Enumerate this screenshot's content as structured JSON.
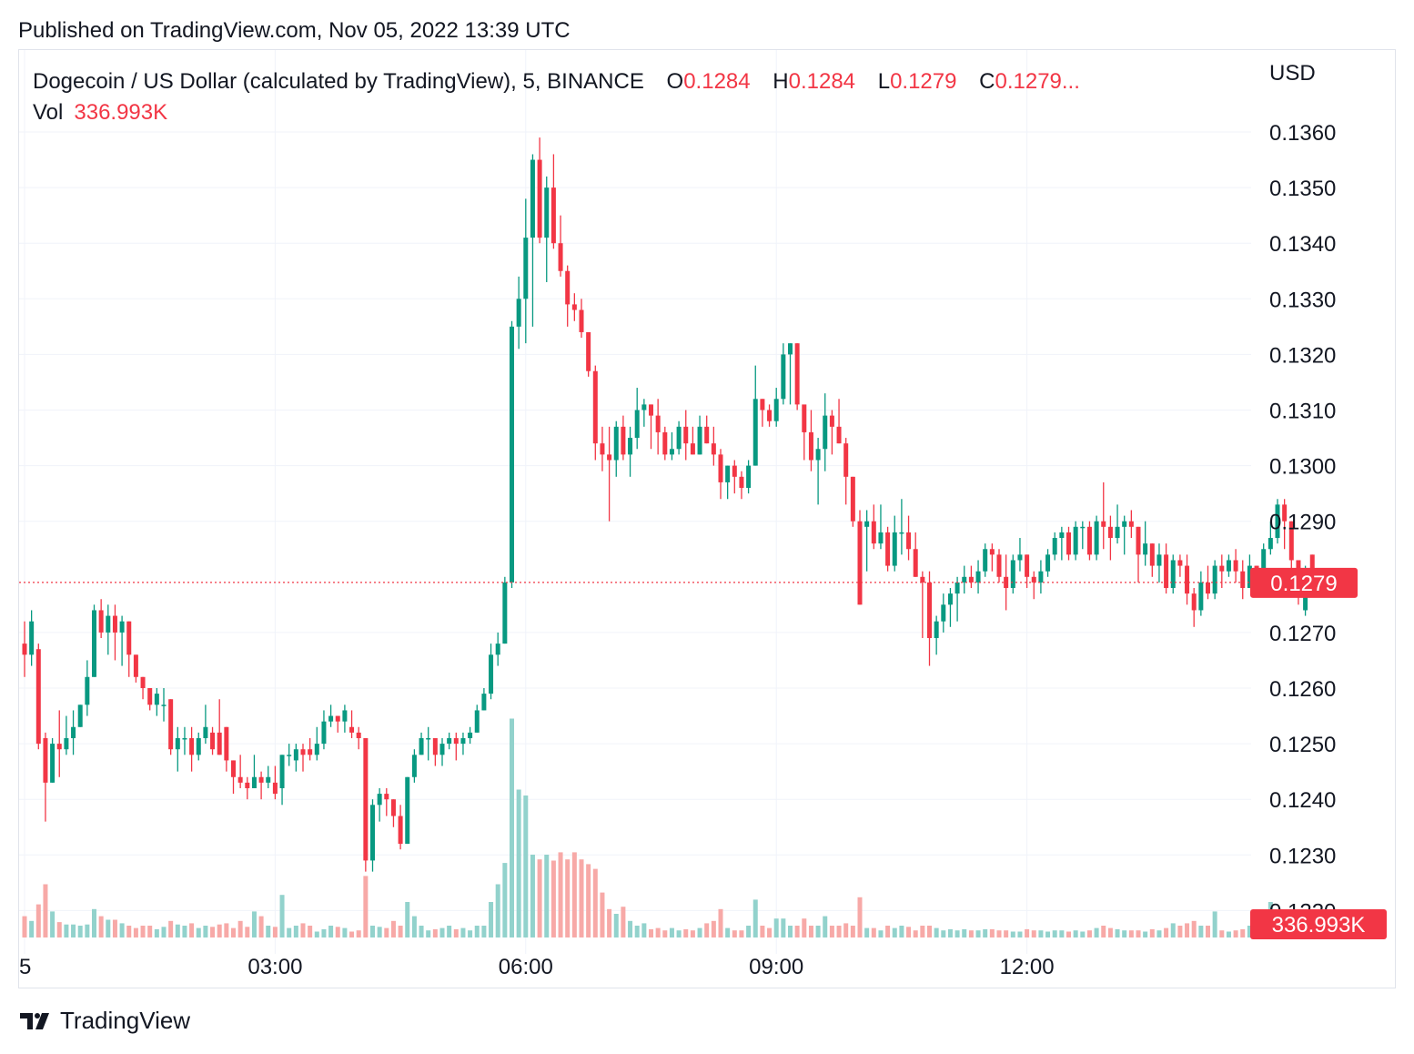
{
  "published": "Published on TradingView.com, Nov 05, 2022 13:39 UTC",
  "legend": {
    "symbol": "Dogecoin / US Dollar (calculated by TradingView), 5, BINANCE",
    "o_label": "O",
    "o_value": "0.1284",
    "h_label": "H",
    "h_value": "0.1284",
    "l_label": "L",
    "l_value": "0.1279",
    "c_label": "C",
    "c_value": "0.1279...",
    "vol_label": "Vol",
    "vol_value": "336.993K"
  },
  "axis_currency": "USD",
  "brand": {
    "name": "TradingView",
    "logo_icon": "tradingview-logo-icon"
  },
  "colors": {
    "up": "#089981",
    "down": "#f23645",
    "up_vol": "#92d2cc",
    "down_vol": "#f7a9a7",
    "grid": "#f0f3fa"
  },
  "chart_data": {
    "type": "candlestick",
    "title": "Dogecoin / US Dollar (calculated by TradingView), 5, BINANCE",
    "y_ticks": [
      "0.1360",
      "0.1350",
      "0.1340",
      "0.1330",
      "0.1320",
      "0.1310",
      "0.1300",
      "0.1290",
      "0.1270",
      "0.1260",
      "0.1250",
      "0.1240",
      "0.1230",
      "0.1220"
    ],
    "y_tick_values": [
      0.136,
      0.135,
      0.134,
      0.133,
      0.132,
      0.131,
      0.13,
      0.129,
      0.127,
      0.126,
      0.125,
      0.124,
      0.123,
      0.122
    ],
    "ylim": [
      0.1221,
      0.1369
    ],
    "x_ticks": [
      "5",
      "03:00",
      "06:00",
      "09:00",
      "12:00"
    ],
    "x_tick_index": [
      0,
      36,
      72,
      108,
      144
    ],
    "last_price": "0.1279",
    "last_price_value": 0.1279,
    "last_volume": "336.993K",
    "candles": [
      [
        0.1268,
        0.1266,
        0.1272,
        0.1262,
        0.18
      ],
      [
        0.1266,
        0.1272,
        0.1274,
        0.1264,
        0.14
      ],
      [
        0.1267,
        0.125,
        0.1268,
        0.1249,
        0.28
      ],
      [
        0.1251,
        0.1243,
        0.1252,
        0.1236,
        0.45
      ],
      [
        0.1243,
        0.125,
        0.1251,
        0.1243,
        0.22
      ],
      [
        0.125,
        0.1249,
        0.1256,
        0.1244,
        0.13
      ],
      [
        0.1249,
        0.1251,
        0.1255,
        0.1248,
        0.11
      ],
      [
        0.1251,
        0.1253,
        0.1256,
        0.1248,
        0.11
      ],
      [
        0.1253,
        0.1257,
        0.1257,
        0.1253,
        0.1
      ],
      [
        0.1257,
        0.1262,
        0.1265,
        0.1255,
        0.11
      ],
      [
        0.1262,
        0.1274,
        0.1275,
        0.1262,
        0.24
      ],
      [
        0.1274,
        0.127,
        0.1276,
        0.1269,
        0.18
      ],
      [
        0.127,
        0.1273,
        0.1275,
        0.1266,
        0.15
      ],
      [
        0.1273,
        0.127,
        0.1275,
        0.1265,
        0.15
      ],
      [
        0.127,
        0.1272,
        0.1273,
        0.1264,
        0.12
      ],
      [
        0.1272,
        0.1266,
        0.1272,
        0.1262,
        0.1
      ],
      [
        0.1266,
        0.1262,
        0.1266,
        0.1261,
        0.08
      ],
      [
        0.1262,
        0.126,
        0.1262,
        0.1258,
        0.1
      ],
      [
        0.126,
        0.1257,
        0.126,
        0.1256,
        0.1
      ],
      [
        0.1257,
        0.1259,
        0.126,
        0.1255,
        0.07
      ],
      [
        0.1257,
        0.1257,
        0.126,
        0.1254,
        0.09
      ],
      [
        0.1258,
        0.1249,
        0.1258,
        0.1248,
        0.14
      ],
      [
        0.1249,
        0.1251,
        0.1253,
        0.1245,
        0.11
      ],
      [
        0.1251,
        0.1251,
        0.1253,
        0.1248,
        0.1
      ],
      [
        0.1251,
        0.1248,
        0.1253,
        0.1245,
        0.12
      ],
      [
        0.1248,
        0.1251,
        0.1252,
        0.1247,
        0.08
      ],
      [
        0.1251,
        0.1253,
        0.1257,
        0.125,
        0.1
      ],
      [
        0.1252,
        0.1249,
        0.1253,
        0.1248,
        0.09
      ],
      [
        0.1252,
        0.1248,
        0.1258,
        0.1248,
        0.11
      ],
      [
        0.1253,
        0.1247,
        0.1253,
        0.1245,
        0.12
      ],
      [
        0.1247,
        0.1244,
        0.1247,
        0.1241,
        0.08
      ],
      [
        0.1244,
        0.1243,
        0.1248,
        0.1242,
        0.14
      ],
      [
        0.1243,
        0.1242,
        0.1244,
        0.124,
        0.09
      ],
      [
        0.1242,
        0.1244,
        0.1248,
        0.1242,
        0.22
      ],
      [
        0.1244,
        0.1243,
        0.1245,
        0.124,
        0.18
      ],
      [
        0.1243,
        0.1244,
        0.1246,
        0.1242,
        0.1
      ],
      [
        0.1243,
        0.1241,
        0.1246,
        0.124,
        0.09
      ],
      [
        0.1242,
        0.1248,
        0.1248,
        0.1239,
        0.36
      ],
      [
        0.1248,
        0.1248,
        0.125,
        0.1246,
        0.08
      ],
      [
        0.1247,
        0.1249,
        0.125,
        0.1245,
        0.1
      ],
      [
        0.1249,
        0.1248,
        0.125,
        0.1245,
        0.12
      ],
      [
        0.1249,
        0.1248,
        0.1251,
        0.1247,
        0.1
      ],
      [
        0.1248,
        0.125,
        0.1253,
        0.1247,
        0.05
      ],
      [
        0.125,
        0.1254,
        0.1256,
        0.1249,
        0.07
      ],
      [
        0.1254,
        0.1255,
        0.1257,
        0.1253,
        0.1
      ],
      [
        0.1255,
        0.1254,
        0.1255,
        0.1252,
        0.09
      ],
      [
        0.1254,
        0.1256,
        0.1257,
        0.1252,
        0.08
      ],
      [
        0.1253,
        0.1252,
        0.1256,
        0.1251,
        0.05
      ],
      [
        0.1252,
        0.1251,
        0.1253,
        0.1249,
        0.06
      ],
      [
        0.1251,
        0.1229,
        0.1251,
        0.1227,
        0.52
      ],
      [
        0.1229,
        0.1239,
        0.124,
        0.1227,
        0.1
      ],
      [
        0.1239,
        0.1241,
        0.1242,
        0.1236,
        0.09
      ],
      [
        0.1241,
        0.124,
        0.1242,
        0.1237,
        0.08
      ],
      [
        0.124,
        0.1237,
        0.124,
        0.1235,
        0.14
      ],
      [
        0.1237,
        0.1232,
        0.1239,
        0.1231,
        0.1
      ],
      [
        0.1232,
        0.1244,
        0.1244,
        0.1232,
        0.3
      ],
      [
        0.1244,
        0.1248,
        0.1249,
        0.1243,
        0.18
      ],
      [
        0.1248,
        0.1251,
        0.1252,
        0.1248,
        0.1
      ],
      [
        0.1251,
        0.1251,
        0.1253,
        0.1247,
        0.06
      ],
      [
        0.1251,
        0.1248,
        0.1251,
        0.1246,
        0.07
      ],
      [
        0.1248,
        0.125,
        0.1251,
        0.1246,
        0.08
      ],
      [
        0.125,
        0.1251,
        0.1252,
        0.1249,
        0.1
      ],
      [
        0.1251,
        0.125,
        0.1252,
        0.1247,
        0.07
      ],
      [
        0.125,
        0.1251,
        0.1252,
        0.1248,
        0.08
      ],
      [
        0.1251,
        0.1252,
        0.1253,
        0.125,
        0.06
      ],
      [
        0.1252,
        0.1256,
        0.1257,
        0.1252,
        0.1
      ],
      [
        0.1256,
        0.1259,
        0.126,
        0.1256,
        0.1
      ],
      [
        0.1259,
        0.1266,
        0.1268,
        0.1258,
        0.3
      ],
      [
        0.1266,
        0.1268,
        0.127,
        0.1264,
        0.45
      ],
      [
        0.1268,
        0.1279,
        0.128,
        0.1268,
        0.63
      ],
      [
        0.1279,
        0.1325,
        0.1326,
        0.1278,
        1.85
      ],
      [
        0.1325,
        0.133,
        0.1334,
        0.1321,
        1.25
      ],
      [
        0.133,
        0.1341,
        0.1348,
        0.1322,
        1.2
      ],
      [
        0.1341,
        0.1355,
        0.1356,
        0.1325,
        0.7
      ],
      [
        0.1355,
        0.1341,
        0.1359,
        0.134,
        0.66
      ],
      [
        0.1341,
        0.135,
        0.1352,
        0.1333,
        0.7
      ],
      [
        0.135,
        0.134,
        0.1356,
        0.1339,
        0.65
      ],
      [
        0.134,
        0.1335,
        0.1345,
        0.1334,
        0.72
      ],
      [
        0.1335,
        0.1329,
        0.1336,
        0.1325,
        0.66
      ],
      [
        0.1329,
        0.1328,
        0.1331,
        0.1326,
        0.72
      ],
      [
        0.1328,
        0.1324,
        0.133,
        0.1323,
        0.66
      ],
      [
        0.1324,
        0.1317,
        0.1324,
        0.1316,
        0.62
      ],
      [
        0.1317,
        0.1304,
        0.1318,
        0.1301,
        0.58
      ],
      [
        0.1304,
        0.1302,
        0.1307,
        0.1299,
        0.38
      ],
      [
        0.1302,
        0.1301,
        0.1307,
        0.129,
        0.24
      ],
      [
        0.1301,
        0.1307,
        0.1308,
        0.1298,
        0.2
      ],
      [
        0.1307,
        0.1302,
        0.1309,
        0.1301,
        0.26
      ],
      [
        0.1302,
        0.1305,
        0.1307,
        0.1298,
        0.14
      ],
      [
        0.1305,
        0.131,
        0.1314,
        0.1303,
        0.1
      ],
      [
        0.131,
        0.1311,
        0.1312,
        0.1307,
        0.12
      ],
      [
        0.1311,
        0.1309,
        0.1311,
        0.1303,
        0.07
      ],
      [
        0.1309,
        0.1306,
        0.1312,
        0.1302,
        0.08
      ],
      [
        0.1306,
        0.1302,
        0.1307,
        0.1301,
        0.06
      ],
      [
        0.1302,
        0.1303,
        0.1306,
        0.1301,
        0.08
      ],
      [
        0.1303,
        0.1307,
        0.1308,
        0.1302,
        0.06
      ],
      [
        0.1307,
        0.1304,
        0.131,
        0.1301,
        0.07
      ],
      [
        0.1304,
        0.1302,
        0.1307,
        0.1302,
        0.06
      ],
      [
        0.1302,
        0.1307,
        0.1309,
        0.1302,
        0.08
      ],
      [
        0.1307,
        0.1304,
        0.1309,
        0.1304,
        0.12
      ],
      [
        0.1304,
        0.1302,
        0.1307,
        0.13,
        0.14
      ],
      [
        0.1302,
        0.1297,
        0.1303,
        0.1294,
        0.24
      ],
      [
        0.1297,
        0.13,
        0.13,
        0.1294,
        0.08
      ],
      [
        0.13,
        0.1298,
        0.1301,
        0.1295,
        0.06
      ],
      [
        0.1298,
        0.1296,
        0.1299,
        0.1294,
        0.06
      ],
      [
        0.1296,
        0.13,
        0.1301,
        0.1295,
        0.1
      ],
      [
        0.13,
        0.1312,
        0.1318,
        0.13,
        0.32
      ],
      [
        0.1312,
        0.131,
        0.1312,
        0.1307,
        0.1
      ],
      [
        0.131,
        0.1308,
        0.1311,
        0.1307,
        0.08
      ],
      [
        0.1308,
        0.1312,
        0.1314,
        0.1307,
        0.16
      ],
      [
        0.1312,
        0.132,
        0.1322,
        0.1311,
        0.16
      ],
      [
        0.132,
        0.1322,
        0.1322,
        0.1311,
        0.1
      ],
      [
        0.1322,
        0.1311,
        0.1322,
        0.131,
        0.1
      ],
      [
        0.1311,
        0.1306,
        0.131,
        0.1301,
        0.16
      ],
      [
        0.1306,
        0.1301,
        0.131,
        0.1299,
        0.1
      ],
      [
        0.1301,
        0.1303,
        0.1305,
        0.1293,
        0.1
      ],
      [
        0.1303,
        0.1309,
        0.1313,
        0.1299,
        0.18
      ],
      [
        0.1309,
        0.1307,
        0.131,
        0.1302,
        0.1
      ],
      [
        0.1307,
        0.1304,
        0.1312,
        0.1304,
        0.1
      ],
      [
        0.1304,
        0.1298,
        0.1305,
        0.1293,
        0.12
      ],
      [
        0.1298,
        0.129,
        0.1298,
        0.1289,
        0.1
      ],
      [
        0.129,
        0.1275,
        0.1292,
        0.1275,
        0.34
      ],
      [
        0.1289,
        0.129,
        0.1292,
        0.1281,
        0.08
      ],
      [
        0.129,
        0.1286,
        0.1293,
        0.1285,
        0.08
      ],
      [
        0.1286,
        0.1288,
        0.1293,
        0.1285,
        0.06
      ],
      [
        0.1288,
        0.1282,
        0.1289,
        0.1281,
        0.1
      ],
      [
        0.1282,
        0.1288,
        0.1291,
        0.1281,
        0.08
      ],
      [
        0.1288,
        0.1288,
        0.1294,
        0.1284,
        0.1
      ],
      [
        0.1288,
        0.1285,
        0.1291,
        0.1283,
        0.09
      ],
      [
        0.1285,
        0.128,
        0.1288,
        0.128,
        0.06
      ],
      [
        0.128,
        0.1279,
        0.1281,
        0.1269,
        0.1
      ],
      [
        0.1279,
        0.1269,
        0.1281,
        0.1264,
        0.1
      ],
      [
        0.1269,
        0.1272,
        0.1273,
        0.1266,
        0.08
      ],
      [
        0.1272,
        0.1275,
        0.1277,
        0.127,
        0.06
      ],
      [
        0.1275,
        0.1277,
        0.1278,
        0.1271,
        0.07
      ],
      [
        0.1277,
        0.1279,
        0.128,
        0.1272,
        0.06
      ],
      [
        0.1279,
        0.128,
        0.1282,
        0.1277,
        0.07
      ],
      [
        0.128,
        0.1279,
        0.1282,
        0.1278,
        0.06
      ],
      [
        0.1279,
        0.1281,
        0.1283,
        0.1277,
        0.06
      ],
      [
        0.1281,
        0.1285,
        0.1286,
        0.128,
        0.07
      ],
      [
        0.1285,
        0.1284,
        0.1286,
        0.1281,
        0.07
      ],
      [
        0.1284,
        0.128,
        0.1285,
        0.1279,
        0.06
      ],
      [
        0.128,
        0.1278,
        0.1284,
        0.1274,
        0.06
      ],
      [
        0.1278,
        0.1283,
        0.1284,
        0.1277,
        0.05
      ],
      [
        0.1283,
        0.1284,
        0.1287,
        0.1281,
        0.05
      ],
      [
        0.1284,
        0.128,
        0.1284,
        0.1278,
        0.07
      ],
      [
        0.128,
        0.1279,
        0.1281,
        0.1276,
        0.06
      ],
      [
        0.1279,
        0.1281,
        0.1283,
        0.1277,
        0.06
      ],
      [
        0.1281,
        0.1284,
        0.1285,
        0.128,
        0.05
      ],
      [
        0.1284,
        0.1287,
        0.1288,
        0.1283,
        0.06
      ],
      [
        0.1287,
        0.1288,
        0.1289,
        0.1283,
        0.06
      ],
      [
        0.1288,
        0.1284,
        0.1289,
        0.1283,
        0.05
      ],
      [
        0.1284,
        0.1289,
        0.129,
        0.1283,
        0.06
      ],
      [
        0.1289,
        0.1289,
        0.129,
        0.1285,
        0.05
      ],
      [
        0.1289,
        0.1284,
        0.129,
        0.1283,
        0.06
      ],
      [
        0.1284,
        0.129,
        0.1291,
        0.1283,
        0.08
      ],
      [
        0.129,
        0.1289,
        0.1297,
        0.1285,
        0.1
      ],
      [
        0.1289,
        0.1287,
        0.1291,
        0.1283,
        0.08
      ],
      [
        0.1287,
        0.1289,
        0.1293,
        0.1286,
        0.07
      ],
      [
        0.1289,
        0.129,
        0.1291,
        0.1284,
        0.06
      ],
      [
        0.129,
        0.1289,
        0.1292,
        0.1287,
        0.06
      ],
      [
        0.1289,
        0.1284,
        0.1289,
        0.1279,
        0.06
      ],
      [
        0.1284,
        0.1286,
        0.129,
        0.1282,
        0.05
      ],
      [
        0.1286,
        0.1282,
        0.1286,
        0.128,
        0.07
      ],
      [
        0.1282,
        0.1284,
        0.1286,
        0.1279,
        0.06
      ],
      [
        0.1284,
        0.1278,
        0.1286,
        0.1277,
        0.08
      ],
      [
        0.1278,
        0.1283,
        0.1284,
        0.1277,
        0.12
      ],
      [
        0.1283,
        0.1282,
        0.1284,
        0.128,
        0.1
      ],
      [
        0.1282,
        0.1277,
        0.1284,
        0.1275,
        0.12
      ],
      [
        0.1277,
        0.1274,
        0.1278,
        0.1271,
        0.14
      ],
      [
        0.1274,
        0.1279,
        0.1281,
        0.1273,
        0.1
      ],
      [
        0.1279,
        0.1277,
        0.1282,
        0.1276,
        0.1
      ],
      [
        0.1277,
        0.1282,
        0.1283,
        0.1276,
        0.22
      ],
      [
        0.1282,
        0.1281,
        0.1284,
        0.1278,
        0.06
      ],
      [
        0.1281,
        0.1283,
        0.1284,
        0.128,
        0.05
      ],
      [
        0.1283,
        0.1281,
        0.1285,
        0.1279,
        0.06
      ],
      [
        0.1281,
        0.1278,
        0.1283,
        0.1276,
        0.07
      ],
      [
        0.1278,
        0.1282,
        0.1284,
        0.1278,
        0.1
      ],
      [
        0.1282,
        0.1279,
        0.1282,
        0.1277,
        0.1
      ],
      [
        0.1279,
        0.1285,
        0.1286,
        0.1279,
        0.14
      ],
      [
        0.1285,
        0.1287,
        0.129,
        0.1284,
        0.3
      ],
      [
        0.1287,
        0.1293,
        0.1294,
        0.1286,
        0.1
      ],
      [
        0.1293,
        0.129,
        0.1294,
        0.1285,
        0.08
      ],
      [
        0.129,
        0.1283,
        0.129,
        0.128,
        0.06
      ],
      [
        0.1283,
        0.1277,
        0.1283,
        0.1275,
        0.05
      ],
      [
        0.1274,
        0.128,
        0.1282,
        0.1273,
        0.06
      ],
      [
        0.1284,
        0.1279,
        0.1284,
        0.1279,
        0.07
      ]
    ]
  }
}
